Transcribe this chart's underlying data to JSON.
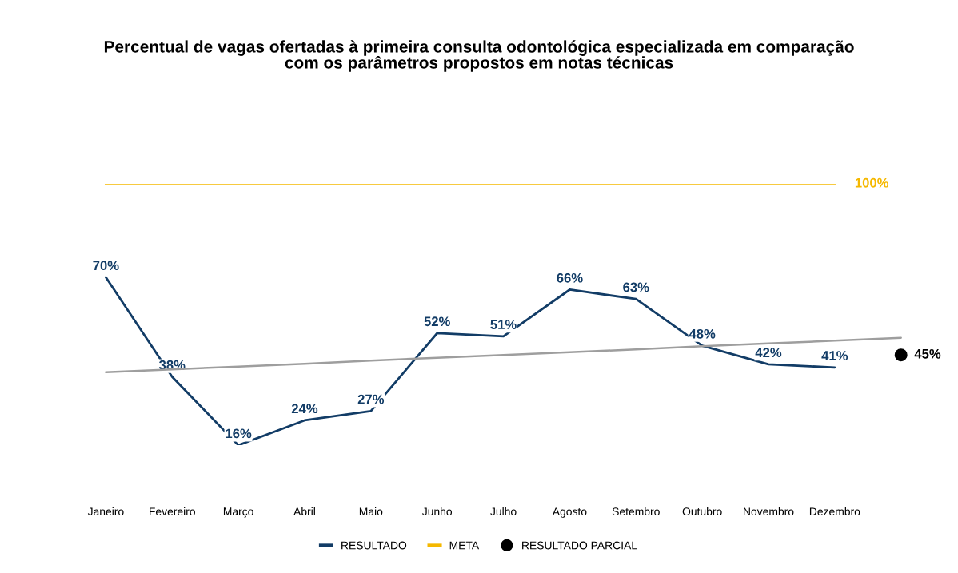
{
  "chart_data": {
    "type": "line",
    "title": "Percentual de vagas ofertadas à primeira consulta odontológica especializada em comparação\ncom os parâmetros propostos em notas técnicas",
    "categories": [
      "Janeiro",
      "Fevereiro",
      "Março",
      "Abril",
      "Maio",
      "Junho",
      "Julho",
      "Agosto",
      "Setembro",
      "Outubro",
      "Novembro",
      "Dezembro",
      null
    ],
    "tick_labels": "x",
    "legend": "bottom",
    "grid": false,
    "series": [
      {
        "name": "RESULTADO",
        "color": "#123c66",
        "values": [
          70,
          38,
          16,
          24,
          27,
          52,
          51,
          66,
          63,
          48,
          42,
          41,
          null
        ],
        "value_labels": [
          "70%",
          "38%",
          "16%",
          "24%",
          "27%",
          "52%",
          "51%",
          "66%",
          "63%",
          "48%",
          "42%",
          "41%",
          null
        ]
      },
      {
        "name": "META",
        "color": "#f5b800",
        "values": [
          100,
          100,
          100,
          100,
          100,
          100,
          100,
          100,
          100,
          100,
          100,
          100,
          null
        ],
        "value_labels": [
          null,
          null,
          null,
          null,
          null,
          null,
          null,
          null,
          null,
          null,
          null,
          "100%",
          null
        ]
      },
      {
        "name": "RESULTADO PARCIAL",
        "type": "scatter",
        "marker": "circle",
        "color": "#000000",
        "values": [
          null,
          null,
          null,
          null,
          null,
          null,
          null,
          null,
          null,
          null,
          null,
          null,
          45
        ],
        "value_labels": [
          null,
          null,
          null,
          null,
          null,
          null,
          null,
          null,
          null,
          null,
          null,
          null,
          "45%"
        ]
      },
      {
        "type": "line",
        "color": "#9e9e9e",
        "values": [
          39.5,
          40.4,
          41.3,
          42.2,
          43.2,
          44.1,
          45.0,
          45.9,
          46.8,
          47.8,
          48.7,
          49.6,
          50.5
        ]
      }
    ]
  }
}
